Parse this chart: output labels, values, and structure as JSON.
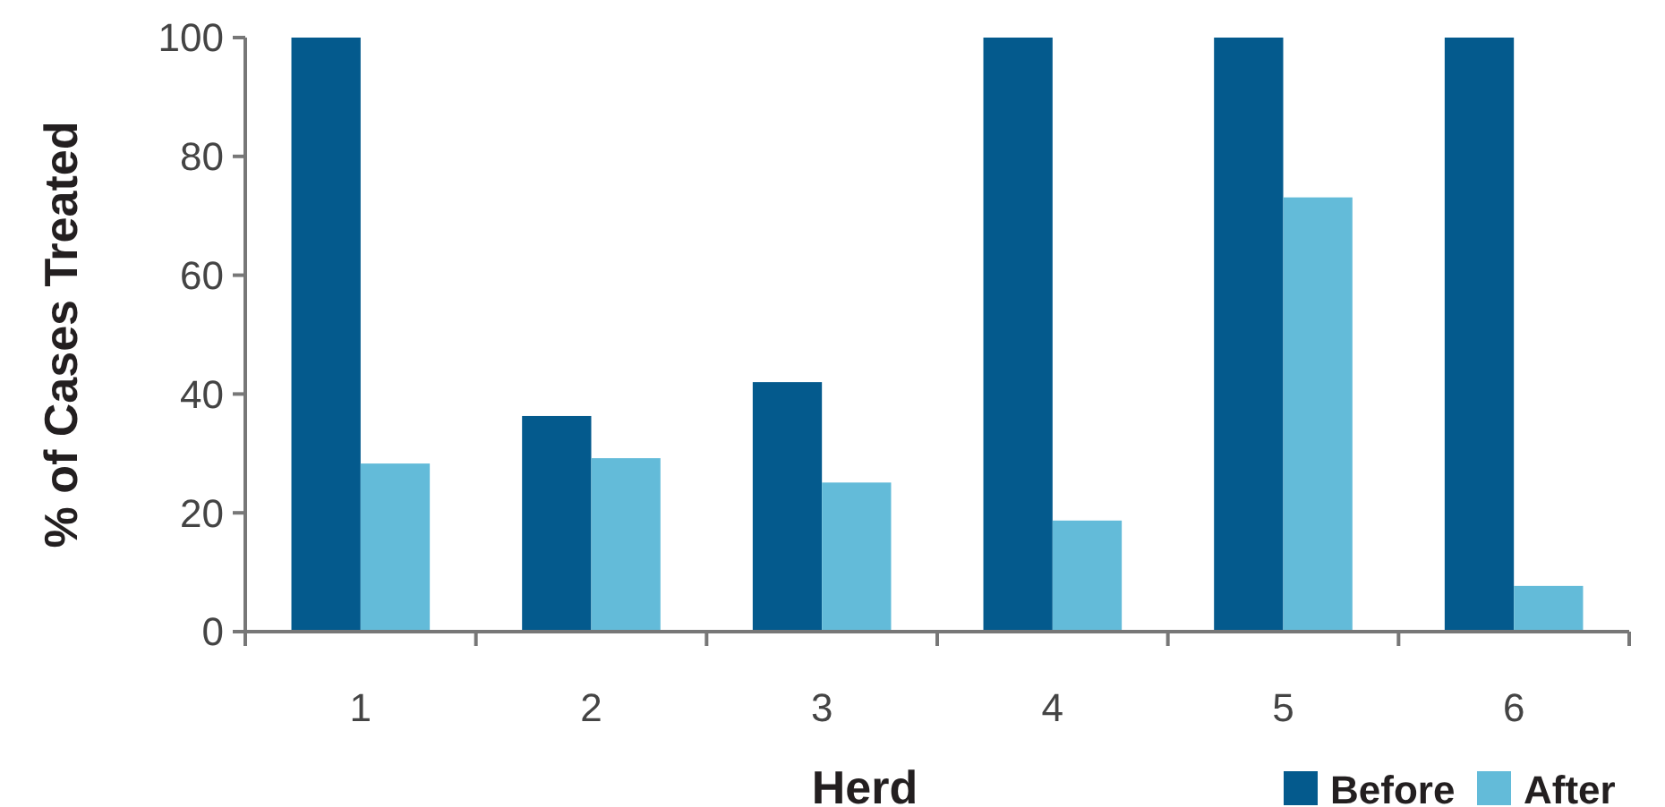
{
  "chart_data": {
    "type": "bar",
    "xlabel": "Herd",
    "ylabel": "% of Cases Treated",
    "categories": [
      "1",
      "2",
      "3",
      "4",
      "5",
      "6"
    ],
    "series": [
      {
        "name": "Before",
        "color": "#045a8d",
        "values": [
          100,
          36.3,
          42,
          100,
          100,
          100
        ]
      },
      {
        "name": "After",
        "color": "#63bbd9",
        "values": [
          28.3,
          29.2,
          25.1,
          18.7,
          73.1,
          7.7
        ]
      }
    ],
    "ylim": [
      0,
      100
    ],
    "yticks": [
      0,
      20,
      40,
      60,
      80,
      100
    ],
    "grid": false,
    "legend": "bottom right"
  }
}
